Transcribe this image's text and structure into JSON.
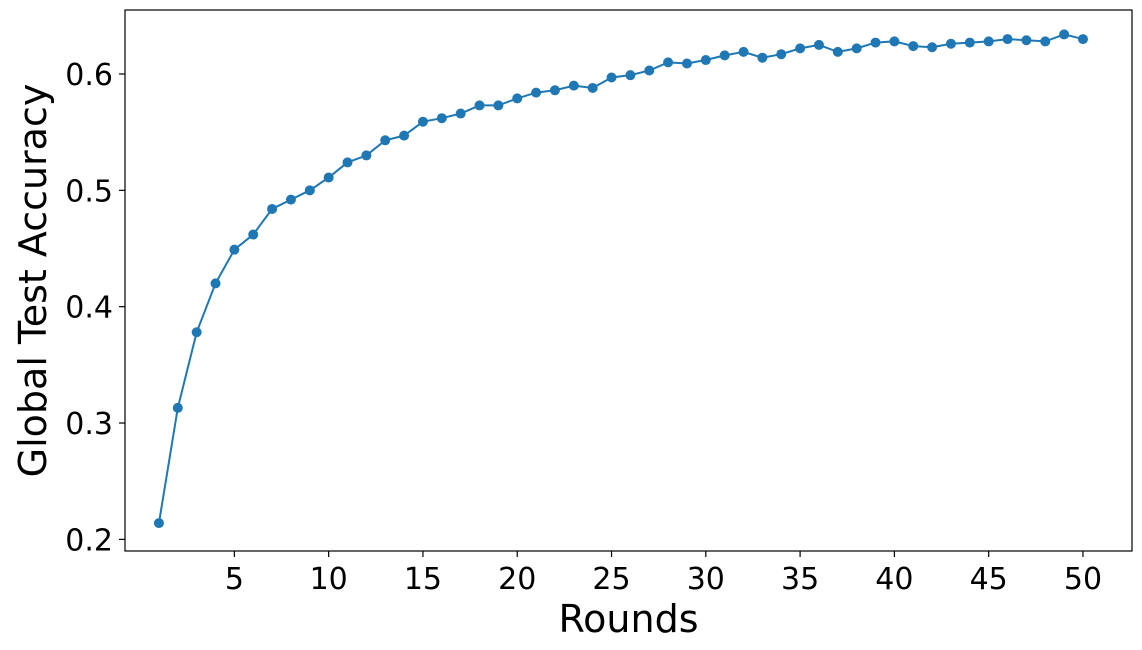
{
  "chart_data": {
    "type": "line",
    "title": "",
    "xlabel": "Rounds",
    "ylabel": "Global Test Accuracy",
    "x_ticks": [
      5,
      10,
      15,
      20,
      25,
      30,
      35,
      40,
      45,
      50
    ],
    "y_ticks": [
      0.2,
      0.3,
      0.4,
      0.5,
      0.6
    ],
    "y_tick_labels": [
      "0.2",
      "0.3",
      "0.4",
      "0.5",
      "0.6"
    ],
    "xlim": [
      -0.8,
      52.6
    ],
    "ylim": [
      0.19,
      0.655
    ],
    "grid": false,
    "legend": "none",
    "series": [
      {
        "color": "#1f77b4",
        "marker": "circle",
        "x": [
          1,
          2,
          3,
          4,
          5,
          6,
          7,
          8,
          9,
          10,
          11,
          12,
          13,
          14,
          15,
          16,
          17,
          18,
          19,
          20,
          21,
          22,
          23,
          24,
          25,
          26,
          27,
          28,
          29,
          30,
          31,
          32,
          33,
          34,
          35,
          36,
          37,
          38,
          39,
          40,
          41,
          42,
          43,
          44,
          45,
          46,
          47,
          48,
          49,
          50
        ],
        "values": [
          0.214,
          0.313,
          0.378,
          0.42,
          0.449,
          0.462,
          0.484,
          0.492,
          0.5,
          0.511,
          0.524,
          0.53,
          0.543,
          0.547,
          0.559,
          0.562,
          0.566,
          0.573,
          0.573,
          0.579,
          0.584,
          0.586,
          0.59,
          0.588,
          0.597,
          0.599,
          0.603,
          0.61,
          0.609,
          0.612,
          0.616,
          0.619,
          0.614,
          0.617,
          0.622,
          0.625,
          0.619,
          0.622,
          0.627,
          0.628,
          0.624,
          0.623,
          0.626,
          0.627,
          0.628,
          0.63,
          0.629,
          0.628,
          0.634,
          0.63
        ]
      }
    ]
  }
}
